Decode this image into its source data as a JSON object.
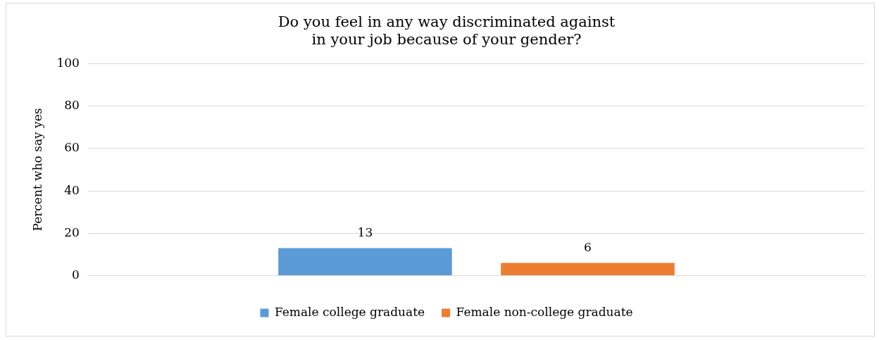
{
  "chart_data": {
    "type": "bar",
    "title": "Do you feel in any way discriminated against\nin your job because of your gender?",
    "ylabel": "Percent who say yes",
    "categories": [
      null
    ],
    "series": [
      {
        "name": "Female college graduate",
        "color": "#5b9bd5",
        "values": [
          13
        ]
      },
      {
        "name": "Female non-college graduate",
        "color": "#ed7d31",
        "values": [
          6
        ]
      }
    ],
    "ylim": [
      0,
      100
    ],
    "yticks": [
      0,
      20,
      40,
      60,
      80,
      100
    ],
    "grid": "y",
    "legend": "bottom",
    "data_labels": true
  }
}
